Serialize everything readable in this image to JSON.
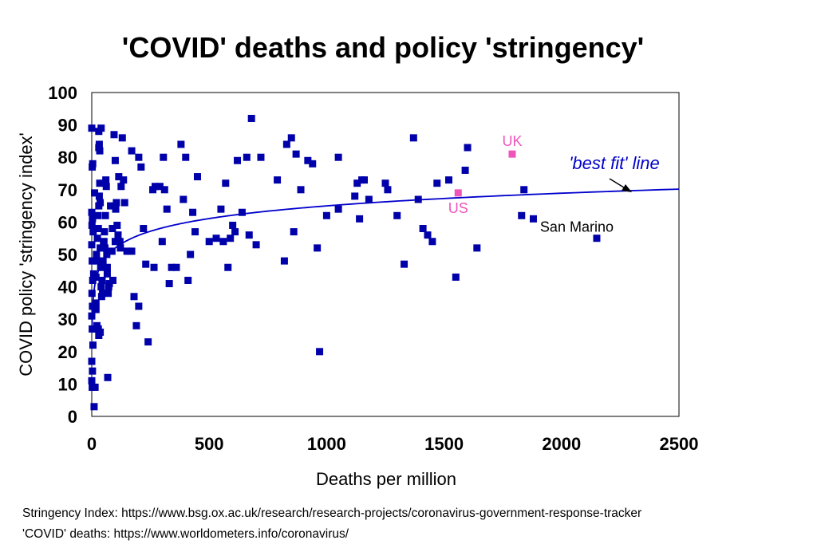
{
  "chart_data": {
    "type": "scatter",
    "title": "'COVID' deaths and policy 'stringency'",
    "xlabel": "Deaths per million",
    "ylabel": "COVID policy 'stringency index'",
    "xlim": [
      0,
      2500
    ],
    "ylim": [
      0,
      100
    ],
    "xticks": [
      0,
      500,
      1000,
      1500,
      2000,
      2500
    ],
    "yticks": [
      0,
      10,
      20,
      30,
      40,
      50,
      60,
      70,
      80,
      90,
      100
    ],
    "grid": false,
    "legend": "none",
    "point_color": "#0000aa",
    "highlight_color": "#ee55bb",
    "fit_color": "#0000cc",
    "series": [
      {
        "points": [
          [
            0,
            89
          ],
          [
            2,
            77
          ],
          [
            4,
            78
          ],
          [
            0,
            63
          ],
          [
            3,
            61
          ],
          [
            1,
            59
          ],
          [
            6,
            57
          ],
          [
            0,
            53
          ],
          [
            2,
            48
          ],
          [
            4,
            42
          ],
          [
            1,
            38
          ],
          [
            3,
            34
          ],
          [
            0,
            31
          ],
          [
            2,
            27
          ],
          [
            5,
            22
          ],
          [
            0,
            17
          ],
          [
            3,
            14
          ],
          [
            0,
            11
          ],
          [
            2,
            9
          ],
          [
            7,
            9
          ],
          [
            10,
            3
          ],
          [
            14,
            9
          ],
          [
            16,
            27
          ],
          [
            18,
            33
          ],
          [
            18,
            43
          ],
          [
            8,
            44
          ],
          [
            20,
            50
          ],
          [
            22,
            48
          ],
          [
            24,
            55
          ],
          [
            26,
            62
          ],
          [
            28,
            58
          ],
          [
            30,
            65
          ],
          [
            32,
            68
          ],
          [
            34,
            72
          ],
          [
            36,
            66
          ],
          [
            36,
            52
          ],
          [
            38,
            46
          ],
          [
            40,
            40
          ],
          [
            44,
            42
          ],
          [
            46,
            38
          ],
          [
            42,
            37
          ],
          [
            48,
            48
          ],
          [
            50,
            53
          ],
          [
            52,
            54
          ],
          [
            54,
            57
          ],
          [
            56,
            52
          ],
          [
            58,
            62
          ],
          [
            30,
            88
          ],
          [
            32,
            84
          ],
          [
            34,
            82
          ],
          [
            30,
            83
          ],
          [
            40,
            89
          ],
          [
            28,
            27
          ],
          [
            30,
            25
          ],
          [
            36,
            26
          ],
          [
            12,
            69
          ],
          [
            18,
            35
          ],
          [
            22,
            28
          ],
          [
            60,
            73
          ],
          [
            62,
            71
          ],
          [
            64,
            50
          ],
          [
            66,
            44
          ],
          [
            66,
            46
          ],
          [
            68,
            12
          ],
          [
            70,
            38
          ],
          [
            72,
            40
          ],
          [
            75,
            41
          ],
          [
            80,
            65
          ],
          [
            86,
            51
          ],
          [
            88,
            58
          ],
          [
            90,
            42
          ],
          [
            95,
            87
          ],
          [
            100,
            79
          ],
          [
            100,
            54
          ],
          [
            102,
            64
          ],
          [
            105,
            66
          ],
          [
            108,
            59
          ],
          [
            112,
            56
          ],
          [
            115,
            74
          ],
          [
            120,
            54
          ],
          [
            122,
            52
          ],
          [
            125,
            71
          ],
          [
            130,
            86
          ],
          [
            135,
            73
          ],
          [
            140,
            66
          ],
          [
            150,
            51
          ],
          [
            160,
            51
          ],
          [
            170,
            51
          ],
          [
            170,
            82
          ],
          [
            180,
            37
          ],
          [
            190,
            28
          ],
          [
            200,
            34
          ],
          [
            200,
            80
          ],
          [
            210,
            77
          ],
          [
            220,
            58
          ],
          [
            230,
            47
          ],
          [
            240,
            23
          ],
          [
            260,
            70
          ],
          [
            265,
            46
          ],
          [
            270,
            71
          ],
          [
            290,
            71
          ],
          [
            300,
            54
          ],
          [
            305,
            80
          ],
          [
            310,
            70
          ],
          [
            320,
            64
          ],
          [
            330,
            41
          ],
          [
            340,
            46
          ],
          [
            360,
            46
          ],
          [
            380,
            84
          ],
          [
            390,
            67
          ],
          [
            400,
            80
          ],
          [
            410,
            42
          ],
          [
            420,
            50
          ],
          [
            430,
            63
          ],
          [
            440,
            57
          ],
          [
            450,
            74
          ],
          [
            500,
            54
          ],
          [
            530,
            55
          ],
          [
            550,
            64
          ],
          [
            560,
            54
          ],
          [
            570,
            72
          ],
          [
            580,
            46
          ],
          [
            590,
            55
          ],
          [
            600,
            59
          ],
          [
            610,
            57
          ],
          [
            620,
            79
          ],
          [
            640,
            63
          ],
          [
            660,
            80
          ],
          [
            670,
            56
          ],
          [
            680,
            92
          ],
          [
            700,
            53
          ],
          [
            720,
            80
          ],
          [
            790,
            73
          ],
          [
            820,
            48
          ],
          [
            830,
            84
          ],
          [
            850,
            86
          ],
          [
            860,
            57
          ],
          [
            870,
            81
          ],
          [
            890,
            70
          ],
          [
            920,
            79
          ],
          [
            940,
            78
          ],
          [
            960,
            52
          ],
          [
            970,
            20
          ],
          [
            1000,
            62
          ],
          [
            1050,
            80
          ],
          [
            1050,
            64
          ],
          [
            1120,
            68
          ],
          [
            1130,
            72
          ],
          [
            1140,
            61
          ],
          [
            1150,
            73
          ],
          [
            1160,
            73
          ],
          [
            1180,
            67
          ],
          [
            1250,
            72
          ],
          [
            1260,
            70
          ],
          [
            1300,
            62
          ],
          [
            1330,
            47
          ],
          [
            1370,
            86
          ],
          [
            1390,
            67
          ],
          [
            1410,
            58
          ],
          [
            1430,
            56
          ],
          [
            1450,
            54
          ],
          [
            1470,
            72
          ],
          [
            1520,
            73
          ],
          [
            1550,
            43
          ],
          [
            1590,
            76
          ],
          [
            1600,
            83
          ],
          [
            1640,
            52
          ],
          [
            1830,
            62
          ],
          [
            1840,
            70
          ],
          [
            1880,
            61
          ],
          [
            2150,
            55
          ]
        ]
      }
    ],
    "highlights": [
      {
        "label": "UK",
        "x": 1790,
        "y": 81
      },
      {
        "label": "US",
        "x": 1560,
        "y": 69
      }
    ],
    "annotations": [
      {
        "text": "San Marino",
        "x": 2150,
        "y": 55
      },
      {
        "text": "'best fit' line"
      }
    ],
    "fit_line": {
      "form": "logarithmic",
      "a": 26.0,
      "b": 13.0,
      "x_from": 1,
      "x_to": 2500
    }
  },
  "sources": {
    "stringency": "Stringency Index: https://www.bsg.ox.ac.uk/research/research-projects/coronavirus-government-response-tracker",
    "deaths": "'COVID' deaths: https://www.worldometers.info/coronavirus/"
  }
}
